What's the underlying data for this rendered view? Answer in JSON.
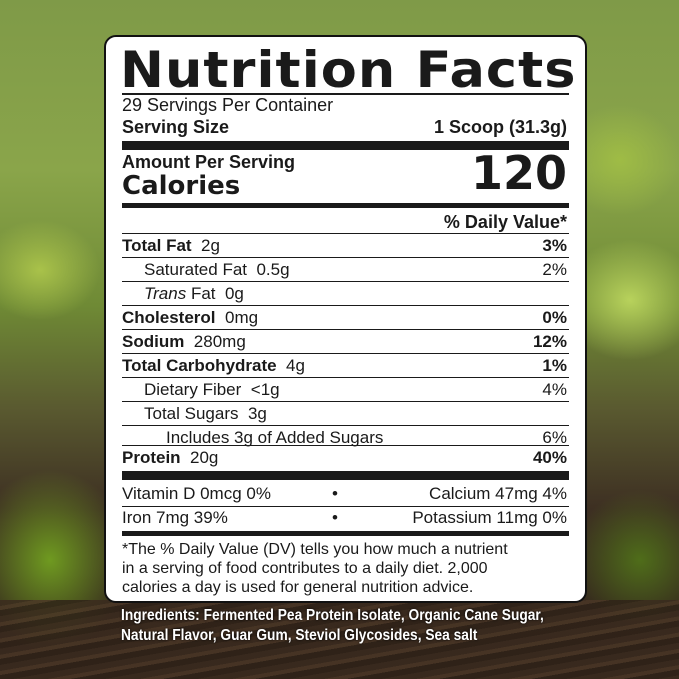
{
  "title": "Nutrition Facts",
  "servings_per_container": "29 Servings Per Container",
  "serving_size_label": "Serving Size",
  "serving_size_value": "1 Scoop (31.3g)",
  "amount_per_serving": "Amount Per Serving",
  "calories_label": "Calories",
  "calories_value": "120",
  "daily_value_header": "% Daily Value*",
  "nutrients": [
    {
      "name": "Total Fat",
      "amount": "2g",
      "dv": "3%",
      "bold": true,
      "indent": 0
    },
    {
      "name": "Saturated Fat",
      "amount": "0.5g",
      "dv": "2%",
      "bold": false,
      "indent": 1
    },
    {
      "name": "Trans",
      "name_suffix": "Fat",
      "amount": "0g",
      "dv": "",
      "bold": false,
      "indent": 1
    },
    {
      "name": "Cholesterol",
      "amount": "0mg",
      "dv": "0%",
      "bold": true,
      "indent": 0
    },
    {
      "name": "Sodium",
      "amount": "280mg",
      "dv": "12%",
      "bold": true,
      "indent": 0
    },
    {
      "name": "Total Carbohydrate",
      "amount": "4g",
      "dv": "1%",
      "bold": true,
      "indent": 0
    },
    {
      "name": "Dietary Fiber",
      "amount": "<1g",
      "dv": "4%",
      "bold": false,
      "indent": 1
    },
    {
      "name": "Total Sugars",
      "amount": "3g",
      "dv": "",
      "bold": false,
      "indent": 1
    },
    {
      "name": "Includes 3g of Added Sugars",
      "amount": "",
      "dv": "6%",
      "bold": false,
      "indent": 2
    },
    {
      "name": "Protein",
      "amount": "20g",
      "dv": "40%",
      "bold": true,
      "indent": 0
    }
  ],
  "vitamins": [
    {
      "left": "Vitamin D 0mcg 0%",
      "right": "Calcium 47mg 4%"
    },
    {
      "left": "Iron 7mg 39%",
      "right": "Potassium 11mg 0%"
    }
  ],
  "bullet": "•",
  "footnote": [
    "*The % Daily Value (DV) tells you how much a nutrient",
    "in a serving of food contributes to a daily diet. 2,000",
    "calories a day is used for general nutrition advice."
  ],
  "ingredients": [
    "Ingredients: Fermented Pea Protein Isolate, Organic Cane Sugar,",
    "Natural Flavor, Guar Gum, Steviol Glycosides, Sea salt"
  ]
}
